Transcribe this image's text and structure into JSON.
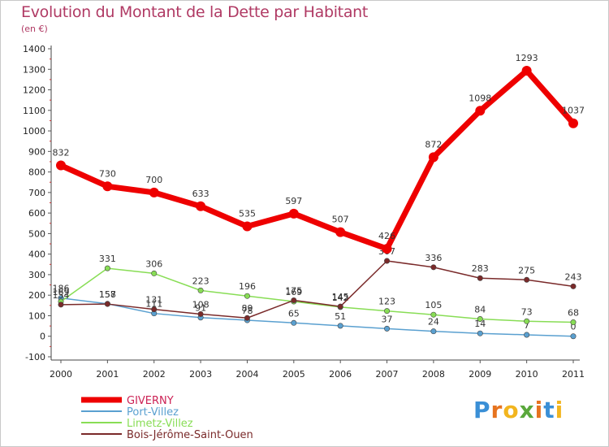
{
  "title": "Evolution du Montant de la Dette par Habitant",
  "unit": "(en €)",
  "logo": "Proxiti",
  "chart_data": {
    "type": "line",
    "title": "Evolution du Montant de la Dette par Habitant",
    "ylabel": "(en €)",
    "ylim": [
      -100,
      1400
    ],
    "y_ticks": [
      -100,
      0,
      100,
      200,
      300,
      400,
      500,
      600,
      700,
      800,
      900,
      1000,
      1100,
      1200,
      1300,
      1400
    ],
    "categories": [
      "2000",
      "2001",
      "2002",
      "2003",
      "2004",
      "2005",
      "2006",
      "2007",
      "2008",
      "2009",
      "2010",
      "2011"
    ],
    "grid": false,
    "legend_position": "bottom-left",
    "series": [
      {
        "name": "GIVERNY",
        "color": "#ee0000",
        "values": [
          832,
          730,
          700,
          633,
          535,
          597,
          507,
          426,
          872,
          1098,
          1293,
          1037
        ]
      },
      {
        "name": "Port-Villez",
        "color": "#5aa0d0",
        "values": [
          186,
          158,
          111,
          91,
          78,
          65,
          51,
          37,
          24,
          14,
          7,
          0
        ]
      },
      {
        "name": "Limetz-Villez",
        "color": "#88dd55",
        "values": [
          169,
          331,
          306,
          223,
          196,
          169,
          142,
          123,
          105,
          84,
          73,
          68
        ]
      },
      {
        "name": "Bois-Jérôme-Saint-Ouen",
        "color": "#7a2a2a",
        "values": [
          154,
          157,
          131,
          108,
          89,
          175,
          145,
          367,
          336,
          283,
          275,
          243
        ]
      }
    ]
  }
}
